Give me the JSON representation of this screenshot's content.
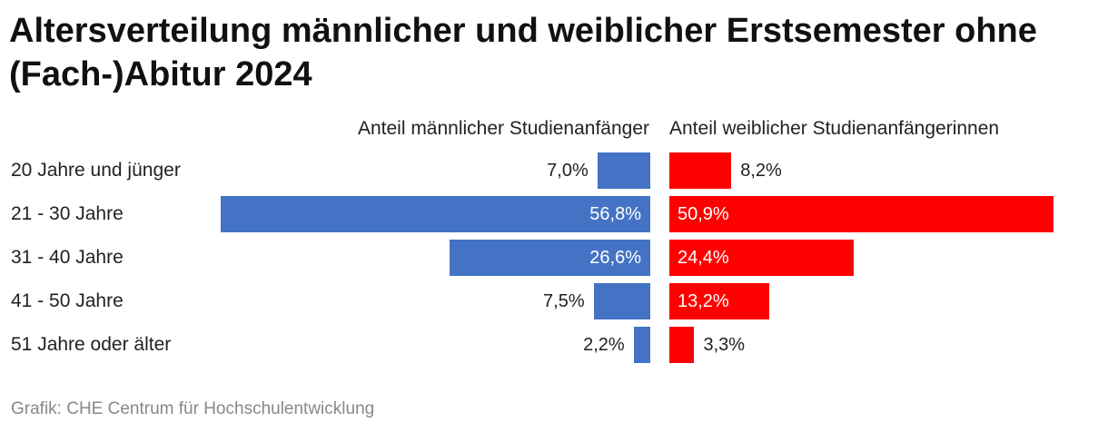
{
  "title": "Altersverteilung männlicher und weiblicher Erstsemester ohne (Fach-)Abitur 2024",
  "source": "Grafik: CHE Centrum für Hochschulentwicklung",
  "colors": {
    "male": "#4472c4",
    "female": "#ff0000"
  },
  "chart_data": {
    "type": "bar",
    "orientation": "horizontal-butterfly",
    "title": "Altersverteilung männlicher und weiblicher Erstsemester ohne (Fach-)Abitur 2024",
    "categories": [
      "20 Jahre und jünger",
      "21 - 30 Jahre",
      "31 - 40 Jahre",
      "41 - 50 Jahre",
      "51 Jahre oder älter"
    ],
    "series": [
      {
        "name": "Anteil männlicher Studienanfänger",
        "values": [
          7.0,
          56.8,
          26.6,
          7.5,
          2.2
        ],
        "labels": [
          "7,0%",
          "56,8%",
          "26,6%",
          "7,5%",
          "2,2%"
        ]
      },
      {
        "name": "Anteil weiblicher Studienanfängerinnen",
        "values": [
          8.2,
          50.9,
          24.4,
          13.2,
          3.3
        ],
        "labels": [
          "8,2%",
          "50,9%",
          "24,4%",
          "13,2%",
          "3,3%"
        ]
      }
    ],
    "unit": "%",
    "xlim": [
      0,
      60
    ]
  }
}
